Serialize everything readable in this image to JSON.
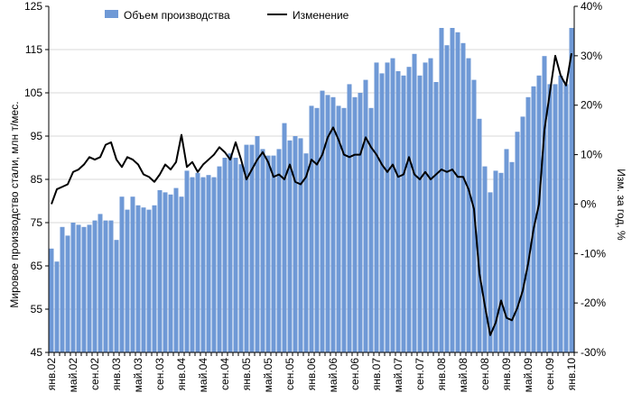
{
  "chart_data": {
    "type": "bar",
    "ylabel": "Мировое производство стали, млн т/мес.",
    "y2label": "Изм. за год, %",
    "ylim": [
      45,
      125
    ],
    "y2lim": [
      -30,
      40
    ],
    "y_ticks": [
      45,
      55,
      65,
      75,
      85,
      95,
      105,
      115,
      125
    ],
    "y2_ticks": [
      "-30%",
      "-20%",
      "-10%",
      "0%",
      "10%",
      "20%",
      "30%",
      "40%"
    ],
    "x_tick_labels": [
      "янв.02",
      "май.02",
      "сен.02",
      "янв.03",
      "май.03",
      "сен.03",
      "янв.04",
      "май.04",
      "сен.04",
      "янв.05",
      "май.05",
      "сен.05",
      "янв.06",
      "май.06",
      "сен.06",
      "янв.07",
      "май.07",
      "сен.07",
      "янв.08",
      "май.08",
      "сен.08",
      "янв.09",
      "май.09",
      "сен.09",
      "янв.10"
    ],
    "legend": {
      "placement": "top"
    },
    "series": [
      {
        "name": "Объем производства",
        "type": "bar",
        "color": "#6f99d6",
        "values": [
          69,
          66,
          74,
          72,
          75,
          74.5,
          74,
          74.5,
          75.5,
          77,
          75.5,
          75.5,
          71,
          81,
          78,
          81,
          79,
          78.5,
          78,
          79,
          82.5,
          82,
          81.5,
          83,
          81,
          87,
          85.5,
          86.5,
          85.5,
          86,
          85.5,
          88,
          90,
          91,
          90,
          88.5,
          93,
          93,
          95,
          92,
          90.5,
          90.5,
          92,
          98,
          94,
          95,
          94.5,
          91,
          102,
          101.5,
          105.5,
          104.5,
          104,
          102,
          101.5,
          107,
          104,
          105,
          108,
          101.5,
          112,
          109.5,
          112,
          113,
          110,
          109,
          111,
          114,
          109,
          112,
          113,
          107.5,
          120,
          116,
          120,
          119,
          116.5,
          113,
          108,
          99,
          88,
          82,
          87,
          86.5,
          92,
          89,
          96,
          99.5,
          104,
          106.5,
          109,
          113.5,
          107,
          107,
          109,
          107,
          120
        ]
      },
      {
        "name": "Изменение",
        "type": "line",
        "axis": "right",
        "color": "#000000",
        "values": [
          0,
          3,
          3.5,
          4,
          6.5,
          7,
          8,
          9.5,
          9,
          9.5,
          12,
          12.5,
          9,
          7.5,
          9.5,
          9,
          8,
          6,
          5.5,
          4.5,
          6,
          8,
          7,
          8.5,
          14,
          7.5,
          8.5,
          6.5,
          8,
          9,
          10,
          11.5,
          10.5,
          9,
          12.5,
          9,
          5,
          7,
          9,
          10.5,
          8.5,
          5.5,
          6,
          5,
          8,
          4.5,
          4,
          5.5,
          9,
          8,
          10,
          13.5,
          15.5,
          13,
          10,
          9.5,
          10,
          10,
          13.5,
          11.5,
          10,
          8,
          6.5,
          8,
          5.5,
          6,
          9.5,
          6,
          5,
          6.5,
          5,
          6,
          7,
          6.5,
          7,
          5.5,
          5.5,
          3,
          -1,
          -14,
          -20.5,
          -26.5,
          -24,
          -19.5,
          -23,
          -23.5,
          -21,
          -17.5,
          -12,
          -5,
          0,
          15,
          22.5,
          30,
          26,
          24,
          30.5
        ]
      }
    ]
  }
}
